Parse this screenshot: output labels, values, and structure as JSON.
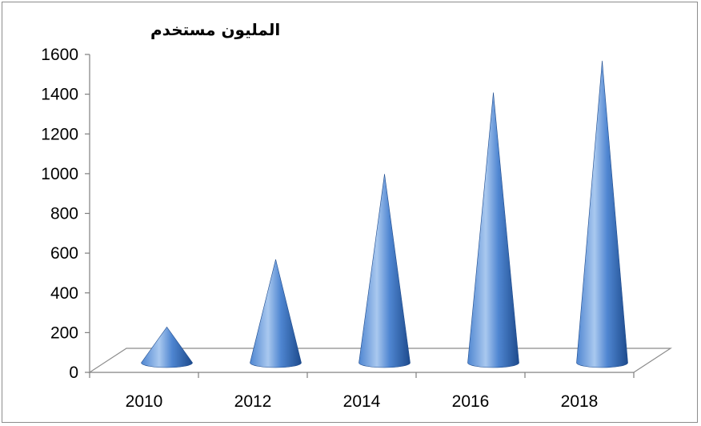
{
  "chart_data": {
    "type": "bar",
    "shape": "cone",
    "style": "3d",
    "title": "",
    "ylabel": "المليون مستخدم",
    "xlabel": "",
    "categories": [
      "2010",
      "2012",
      "2014",
      "2016",
      "2018"
    ],
    "values": [
      180,
      520,
      950,
      1360,
      1520
    ],
    "ylim": [
      0,
      1600
    ],
    "yticks": [
      0,
      200,
      400,
      600,
      800,
      1000,
      1200,
      1400,
      1600
    ],
    "grid": false,
    "legend": "none",
    "colors": {
      "cone_light": "#a9c8ef",
      "cone_mid": "#4f86d1",
      "cone_dark": "#1d4a8c",
      "axis": "#7f7f7f",
      "floor": "#8c8c8c"
    }
  }
}
